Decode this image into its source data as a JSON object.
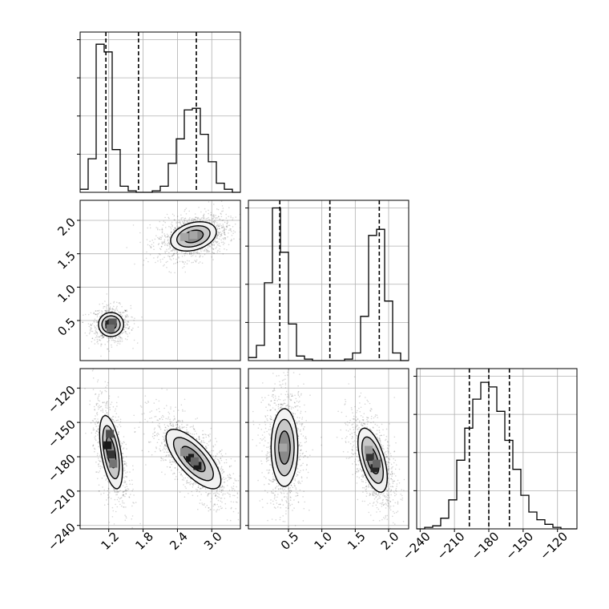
{
  "chart_data": {
    "type": "corner",
    "params": [
      {
        "ticks": [
          1.2,
          1.8,
          2.4,
          3.0
        ],
        "tick_labels": [
          "1.2",
          "1.8",
          "2.4",
          "3.0"
        ],
        "range": [
          0.7,
          3.5
        ]
      },
      {
        "ticks": [
          0.5,
          1.0,
          1.5,
          2.0
        ],
        "tick_labels": [
          "0.5",
          "1.0",
          "1.5",
          "2.0"
        ],
        "range": [
          -0.1,
          2.3
        ]
      },
      {
        "ticks": [
          -240,
          -210,
          -180,
          -150,
          -120
        ],
        "tick_labels": [
          "−240",
          "−210",
          "−180",
          "−150",
          "−120"
        ],
        "range": [
          -243,
          -103
        ]
      }
    ],
    "diagonal": [
      {
        "param": 0,
        "type": "step-histogram",
        "bins": [
          0.7,
          0.84,
          0.98,
          1.12,
          1.26,
          1.4,
          1.54,
          1.68,
          1.82,
          1.96,
          2.1,
          2.24,
          2.38,
          2.52,
          2.66,
          2.8,
          2.94,
          3.08,
          3.22,
          3.36,
          3.5
        ],
        "counts": [
          0.02,
          0.22,
          0.97,
          0.92,
          0.28,
          0.04,
          0.01,
          0,
          0,
          0.01,
          0.04,
          0.19,
          0.35,
          0.54,
          0.55,
          0.38,
          0.2,
          0.06,
          0.02,
          0
        ],
        "ylim": [
          0,
          1.05
        ],
        "quantiles": [
          1.15,
          1.72,
          2.73
        ]
      },
      {
        "param": 1,
        "type": "step-histogram",
        "bins": [
          -0.1,
          0.02,
          0.14,
          0.26,
          0.38,
          0.5,
          0.62,
          0.74,
          0.86,
          0.98,
          1.1,
          1.22,
          1.34,
          1.46,
          1.58,
          1.7,
          1.82,
          1.94,
          2.06,
          2.18,
          2.3
        ],
        "counts": [
          0.02,
          0.1,
          0.51,
          1.0,
          0.71,
          0.24,
          0.03,
          0.01,
          0,
          0,
          0,
          0,
          0.01,
          0.05,
          0.29,
          0.82,
          0.86,
          0.39,
          0.05,
          0
        ],
        "ylim": [
          0,
          1.05
        ],
        "quantiles": [
          0.37,
          1.12,
          1.86
        ]
      },
      {
        "param": 2,
        "type": "step-histogram",
        "bins": [
          -243,
          -236,
          -229,
          -222,
          -215,
          -208,
          -201,
          -194,
          -187,
          -180,
          -173,
          -166,
          -159,
          -152,
          -145,
          -138,
          -131,
          -124,
          -117,
          -110,
          -103
        ],
        "counts": [
          0,
          0.01,
          0.02,
          0.07,
          0.19,
          0.45,
          0.66,
          0.85,
          0.96,
          0.93,
          0.77,
          0.58,
          0.39,
          0.22,
          0.11,
          0.06,
          0.03,
          0.01,
          0,
          0
        ],
        "ylim": [
          0,
          1.05
        ],
        "quantiles": [
          -197,
          -180,
          -162
        ]
      }
    ],
    "off_diagonal": [
      {
        "x_param": 0,
        "y_param": 1,
        "blobs": [
          {
            "cx": 1.24,
            "cy": 0.44,
            "sx": 0.11,
            "sy": 0.09,
            "rho": 0,
            "n": 750
          },
          {
            "cx": 2.68,
            "cy": 1.76,
            "sx": 0.2,
            "sy": 0.11,
            "rho": 0.3,
            "n": 1300
          }
        ],
        "dark_cells": [
          [
            1.21,
            0.44,
            0.85
          ],
          [
            1.27,
            0.47,
            0.65
          ],
          [
            1.23,
            0.38,
            0.55
          ],
          [
            2.52,
            1.75,
            0.35
          ],
          [
            2.68,
            1.78,
            0.35
          ]
        ]
      },
      {
        "x_param": 0,
        "y_param": 2,
        "blobs": [
          {
            "cx": 1.24,
            "cy": -176,
            "sx": 0.1,
            "sy": 16,
            "rho": -0.5,
            "n": 800
          },
          {
            "cx": 2.68,
            "cy": -182,
            "sx": 0.24,
            "sy": 13,
            "rho": -0.72,
            "n": 1300
          }
        ],
        "dark_cells": [
          [
            1.18,
            -170,
            0.9
          ],
          [
            1.22,
            -160,
            0.7
          ],
          [
            1.24,
            -178,
            0.8
          ],
          [
            1.28,
            -186,
            0.55
          ],
          [
            2.62,
            -181,
            0.9
          ],
          [
            2.75,
            -188,
            0.9
          ],
          [
            2.7,
            -184,
            0.6
          ],
          [
            2.52,
            -176,
            0.45
          ]
        ]
      },
      {
        "x_param": 1,
        "y_param": 2,
        "blobs": [
          {
            "cx": 0.44,
            "cy": -172,
            "sx": 0.1,
            "sy": 17,
            "rho": 0,
            "n": 1100
          },
          {
            "cx": 1.76,
            "cy": -183,
            "sx": 0.11,
            "sy": 14,
            "rho": -0.55,
            "n": 1100
          }
        ],
        "dark_cells": [
          [
            0.42,
            -172,
            0.35
          ],
          [
            1.72,
            -180,
            0.8
          ],
          [
            1.79,
            -190,
            0.85
          ],
          [
            1.82,
            -186,
            0.6
          ],
          [
            1.7,
            -174,
            0.4
          ]
        ]
      }
    ]
  }
}
